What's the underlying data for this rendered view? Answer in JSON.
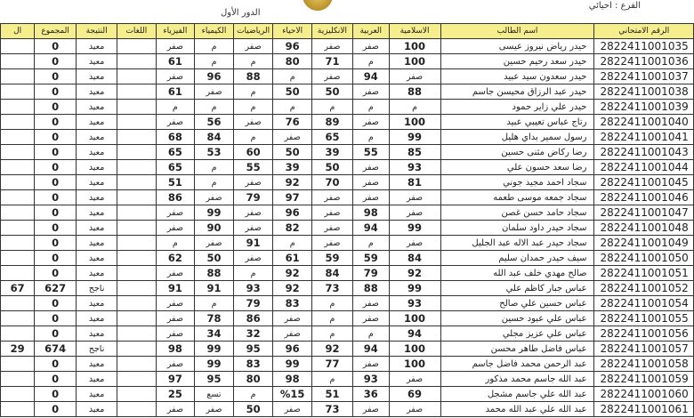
{
  "header": {
    "top_text": "... ... ...",
    "round": "الدور الأول",
    "branch_label": "الفرع :",
    "branch_value": "احيائي"
  },
  "columns": [
    "الرقم الامتحاني",
    "اسم الطالب",
    "الاسلامية",
    "العربية",
    "الانكليزية",
    "الاحياء",
    "الرياضيات",
    "الكيمياء",
    "الفيزياء",
    "اللغات",
    "النتيجة",
    "المجموع",
    "ال"
  ],
  "rows": [
    [
      "2822411001035",
      "حيدر رياض نيروز عيسى",
      "100",
      "صفر",
      "صفر",
      "96",
      "صفر",
      "م",
      "صفر",
      "",
      "معيد",
      "0",
      ""
    ],
    [
      "2822411001036",
      "حيدر سعد رحيم حسين",
      "100",
      "م",
      "71",
      "80",
      "م",
      "م",
      "61",
      "",
      "معيد",
      "0",
      ""
    ],
    [
      "2822411001037",
      "حيدر سعدون سيد عبيد",
      "صفر",
      "94",
      "صفر",
      "م",
      "88",
      "96",
      "صفر",
      "",
      "معيد",
      "0",
      ""
    ],
    [
      "2822411001038",
      "حيدر عبد الرزاق محيسن جاسم",
      "88",
      "صفر",
      "50",
      "50",
      "م",
      "صفر",
      "61",
      "",
      "معيد",
      "0",
      ""
    ],
    [
      "2822411001039",
      "حيدر علي زاير حمود",
      "م",
      "م",
      "م",
      "م",
      "م",
      "م",
      "م",
      "",
      "معيد",
      "0",
      ""
    ],
    [
      "2822411001040",
      "رتاج عباس تعيبي عبيد",
      "100",
      "صفر",
      "89",
      "76",
      "صفر",
      "56",
      "صفر",
      "",
      "معيد",
      "0",
      ""
    ],
    [
      "2822411001041",
      "رسول سمير بداي هليل",
      "99",
      "م",
      "65",
      "صفر",
      "م",
      "84",
      "68",
      "",
      "معيد",
      "0",
      ""
    ],
    [
      "2822411001043",
      "رضا ركاض مثنى حسين",
      "85",
      "55",
      "39",
      "50",
      "60",
      "53",
      "65",
      "",
      "معيد",
      "0",
      ""
    ],
    [
      "2822411001044",
      "رضا سعد حسون علي",
      "93",
      "صفر",
      "50",
      "39",
      "55",
      "م",
      "65",
      "",
      "معيد",
      "0",
      ""
    ],
    [
      "2822411001045",
      "سجاد احمد مجيد جوني",
      "81",
      "صفر",
      "70",
      "92",
      "صفر",
      "م",
      "51",
      "",
      "معيد",
      "0",
      ""
    ],
    [
      "2822411001046",
      "سجاد جمعه موسى طعمه",
      "صفر",
      "صفر",
      "صفر",
      "97",
      "79",
      "صفر",
      "86",
      "",
      "معيد",
      "0",
      ""
    ],
    [
      "2822411001047",
      "سجاد حامد حسن غصن",
      "صفر",
      "98",
      "صفر",
      "96",
      "صفر",
      "99",
      "صفر",
      "",
      "معيد",
      "0",
      ""
    ],
    [
      "2822411001048",
      "سجاد حيدر داود سلمان",
      "99",
      "94",
      "صفر",
      "82",
      "صفر",
      "90",
      "صفر",
      "",
      "معيد",
      "0",
      ""
    ],
    [
      "2822411001049",
      "سجاد حيدر عبد الاله عبد الجليل",
      "صفر",
      "م",
      "صفر",
      "م",
      "91",
      "صفر",
      "م",
      "",
      "معيد",
      "0",
      ""
    ],
    [
      "2822411001050",
      "سيف حيدر حمدان سليم",
      "84",
      "59",
      "59",
      "61",
      "صفر",
      "50",
      "62",
      "",
      "معيد",
      "0",
      ""
    ],
    [
      "2822411001051",
      "صالح مهدي خلف عبد الله",
      "92",
      "79",
      "84",
      "92",
      "م",
      "88",
      "صفر",
      "",
      "معيد",
      "0",
      ""
    ],
    [
      "2822411001052",
      "عباس جبار كاظم علي",
      "99",
      "88",
      "73",
      "92",
      "93",
      "91",
      "91",
      "",
      "ناجح",
      "627",
      "67"
    ],
    [
      "2822411001054",
      "عباس حسين علي صالح",
      "93",
      "صفر",
      "م",
      "83",
      "79",
      "م",
      "صفر",
      "",
      "معيد",
      "0",
      ""
    ],
    [
      "2822411001055",
      "عباس علي عبود حسين",
      "100",
      "صفر",
      "م",
      "صفر",
      "86",
      "78",
      "صفر",
      "",
      "معيد",
      "0",
      ""
    ],
    [
      "2822411001056",
      "عباس علي عزيز مجلي",
      "94",
      "م",
      "م",
      "صفر",
      "32",
      "34",
      "صفر",
      "",
      "معيد",
      "0",
      ""
    ],
    [
      "2822411001057",
      "عباس فاضل طاهر محسن",
      "100",
      "94",
      "92",
      "96",
      "95",
      "99",
      "98",
      "",
      "ناجح",
      "674",
      "29"
    ],
    [
      "2822411001058",
      "عبد الرحمن محمد فاضل جاسم",
      "100",
      "صفر",
      "77",
      "99",
      "83",
      "99",
      "صفر",
      "",
      "معيد",
      "0",
      ""
    ],
    [
      "2822411001059",
      "عبد الله جاسم محمد مذكور",
      "صفر",
      "93",
      "م",
      "98",
      "80",
      "95",
      "97",
      "",
      "معيد",
      "0",
      ""
    ],
    [
      "2822411001060",
      "عبد الله علي جاسم مشجل",
      "69",
      "36",
      "51",
      "%15",
      "م",
      "تسع",
      "25",
      "",
      "معيد",
      "0",
      ""
    ],
    [
      "2822411001061",
      "عبد الله علي عبد الله محمد",
      "صفر",
      "صفر",
      "73",
      "صفر",
      "50",
      "صفر",
      "صفر",
      "",
      "معيد",
      "0",
      ""
    ]
  ]
}
